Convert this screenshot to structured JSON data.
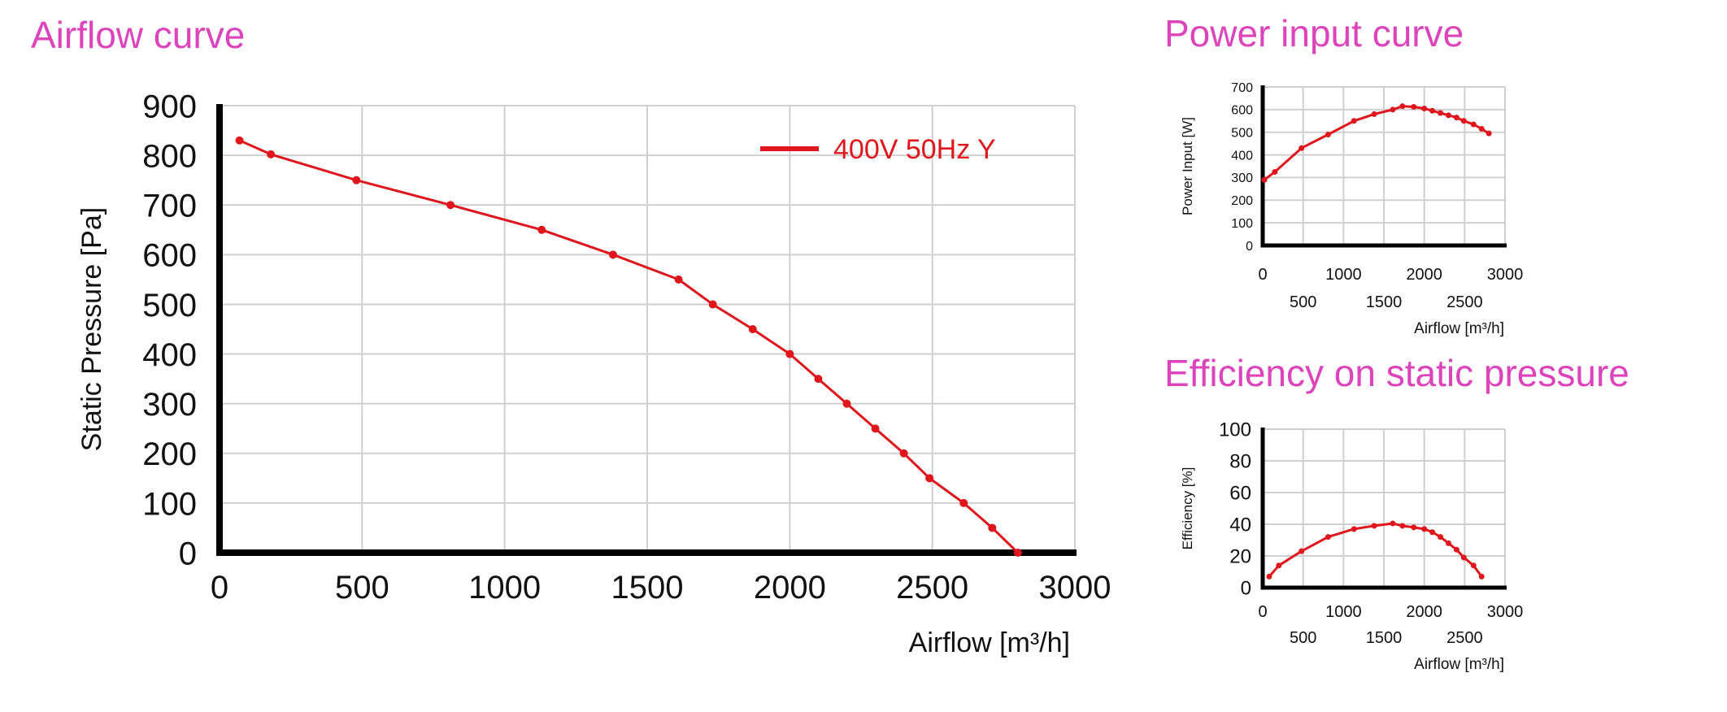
{
  "titles": {
    "airflow": "Airflow curve",
    "power": "Power input curve",
    "efficiency": "Efficiency on static pressure"
  },
  "colors": {
    "title": "#dd44bb",
    "series": "#e0161c",
    "legend_text": "#e0161c",
    "grid": "#cfcfcf"
  },
  "chart_data": [
    {
      "type": "line",
      "title": "Airflow curve",
      "xlabel": "Airflow [m³/h]",
      "ylabel": "Static Pressure [Pa]",
      "xlim": [
        0,
        3000
      ],
      "ylim": [
        0,
        900
      ],
      "x_ticks": [
        0,
        500,
        1000,
        1500,
        2000,
        2500,
        3000
      ],
      "y_ticks": [
        0,
        100,
        200,
        300,
        400,
        500,
        600,
        700,
        800,
        900
      ],
      "grid": true,
      "legend": "top-right",
      "series": [
        {
          "name": "400V 50Hz Y",
          "x": [
            70,
            180,
            480,
            810,
            1130,
            1380,
            1610,
            1730,
            1870,
            2000,
            2100,
            2200,
            2300,
            2400,
            2490,
            2610,
            2710,
            2800
          ],
          "y": [
            830,
            802,
            750,
            700,
            650,
            600,
            550,
            500,
            450,
            400,
            350,
            300,
            250,
            200,
            150,
            100,
            50,
            0
          ]
        }
      ]
    },
    {
      "type": "line",
      "title": "Power input curve",
      "xlabel": "Airflow  [m³/h]",
      "ylabel": "Power Input [W]",
      "xlim": [
        0,
        3000
      ],
      "ylim": [
        0,
        700
      ],
      "x_ticks_upper": [
        0,
        1000,
        2000,
        3000
      ],
      "x_ticks_lower": [
        500,
        1500,
        2500
      ],
      "y_ticks": [
        0,
        100,
        200,
        300,
        400,
        500,
        600,
        700
      ],
      "grid": true,
      "series": [
        {
          "x": [
            20,
            150,
            480,
            810,
            1130,
            1380,
            1610,
            1730,
            1870,
            2000,
            2100,
            2200,
            2300,
            2400,
            2490,
            2610,
            2710,
            2800
          ],
          "y": [
            290,
            325,
            430,
            490,
            550,
            580,
            600,
            615,
            612,
            605,
            595,
            585,
            575,
            565,
            550,
            535,
            515,
            495
          ]
        }
      ]
    },
    {
      "type": "line",
      "title": "Efficiency on static pressure",
      "xlabel": "Airflow  [m³/h]",
      "ylabel": "Efficiency [%]",
      "xlim": [
        0,
        3000
      ],
      "ylim": [
        0,
        100
      ],
      "x_ticks_upper": [
        0,
        1000,
        2000,
        3000
      ],
      "x_ticks_lower": [
        500,
        1500,
        2500
      ],
      "y_ticks": [
        0,
        20,
        40,
        60,
        80,
        100
      ],
      "grid": true,
      "series": [
        {
          "x": [
            80,
            200,
            480,
            810,
            1130,
            1380,
            1610,
            1730,
            1870,
            2000,
            2100,
            2200,
            2300,
            2400,
            2490,
            2610,
            2710
          ],
          "y": [
            7,
            14,
            23,
            32,
            37,
            39,
            40.5,
            39,
            38,
            37,
            35,
            32,
            28,
            24,
            19,
            14,
            7
          ]
        }
      ]
    }
  ]
}
